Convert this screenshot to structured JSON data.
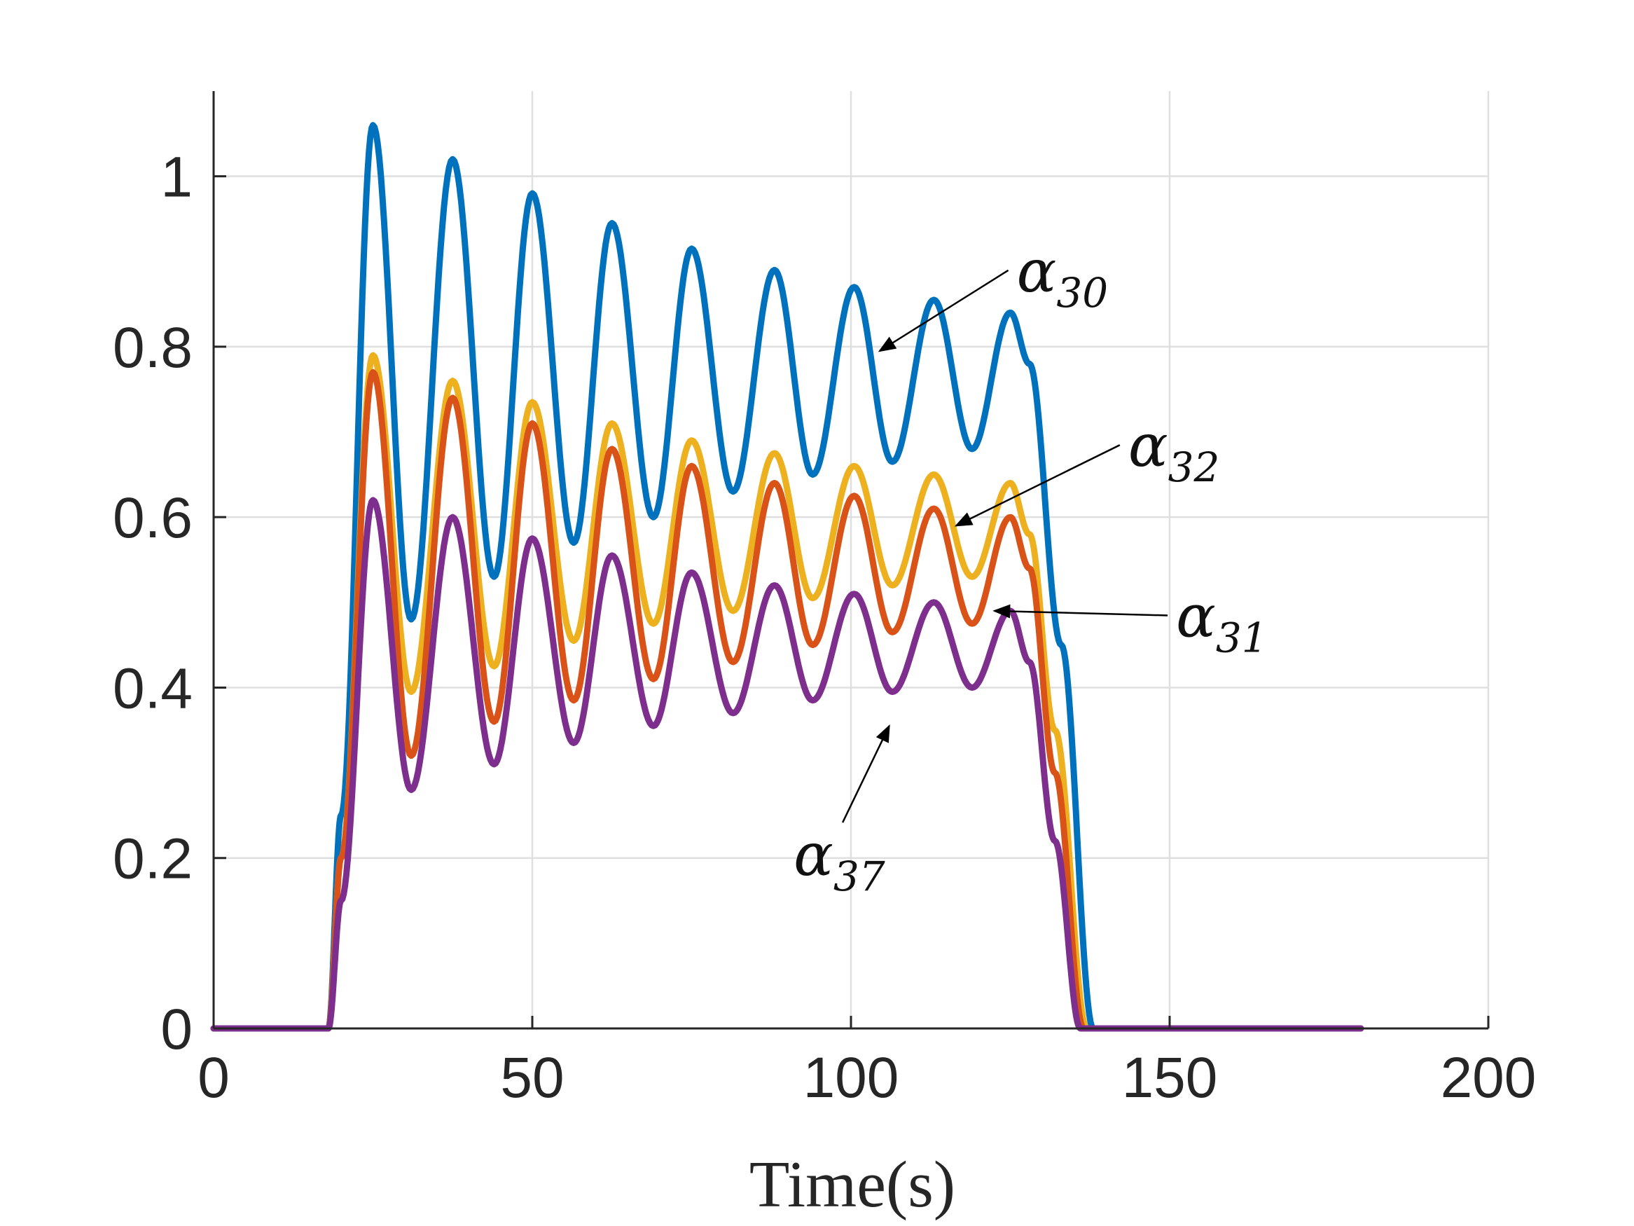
{
  "chart_data": {
    "type": "line",
    "xlabel": "Time(s)",
    "ylabel": "",
    "xlim": [
      0,
      200
    ],
    "ylim": [
      0,
      1.1
    ],
    "xticks": [
      0,
      50,
      100,
      150,
      200
    ],
    "xtick_labels": [
      "0",
      "50",
      "100",
      "150",
      "200"
    ],
    "yticks": [
      0,
      0.2,
      0.4,
      0.6,
      0.8,
      1
    ],
    "ytick_labels": [
      "0",
      "0.2",
      "0.4",
      "0.6",
      "0.8",
      "1"
    ],
    "grid": true,
    "series": [
      {
        "key": "a30",
        "color": "#0072BD",
        "x": [
          0,
          18,
          20,
          25,
          31,
          37.5,
          44,
          50,
          56.5,
          62.5,
          69,
          75,
          81.5,
          88,
          94,
          100.5,
          106.5,
          113,
          119,
          125,
          128,
          133,
          138,
          180
        ],
        "values": [
          0,
          0,
          0.25,
          1.06,
          0.48,
          1.02,
          0.53,
          0.98,
          0.57,
          0.945,
          0.6,
          0.915,
          0.63,
          0.89,
          0.65,
          0.87,
          0.665,
          0.855,
          0.68,
          0.84,
          0.78,
          0.45,
          0,
          0
        ]
      },
      {
        "key": "a32",
        "color": "#EDB120",
        "x": [
          0,
          18,
          20,
          25,
          31,
          37.5,
          44,
          50,
          56.5,
          62.5,
          69,
          75,
          81.5,
          88,
          94,
          100.5,
          106.5,
          113,
          119,
          125,
          128,
          132,
          137,
          180
        ],
        "values": [
          0,
          0,
          0.2,
          0.79,
          0.395,
          0.76,
          0.425,
          0.735,
          0.455,
          0.71,
          0.475,
          0.69,
          0.49,
          0.675,
          0.505,
          0.66,
          0.52,
          0.65,
          0.53,
          0.64,
          0.58,
          0.35,
          0,
          0
        ]
      },
      {
        "key": "a31",
        "color": "#D95319",
        "x": [
          0,
          18,
          20,
          25,
          31,
          37.5,
          44,
          50,
          56.5,
          62.5,
          69,
          75,
          81.5,
          88,
          94,
          100.5,
          106.5,
          113,
          119,
          125,
          128,
          132,
          136.5,
          180
        ],
        "values": [
          0,
          0,
          0.2,
          0.77,
          0.32,
          0.74,
          0.36,
          0.71,
          0.385,
          0.68,
          0.41,
          0.66,
          0.43,
          0.64,
          0.45,
          0.625,
          0.465,
          0.61,
          0.475,
          0.6,
          0.54,
          0.3,
          0,
          0
        ]
      },
      {
        "key": "a37",
        "color": "#7E2F8E",
        "x": [
          0,
          18,
          20,
          25,
          31,
          37.5,
          44,
          50,
          56.5,
          62.5,
          69,
          75,
          81.5,
          88,
          94,
          100.5,
          106.5,
          113,
          119,
          125,
          128,
          132,
          136,
          180
        ],
        "values": [
          0,
          0,
          0.15,
          0.62,
          0.28,
          0.6,
          0.31,
          0.575,
          0.335,
          0.555,
          0.355,
          0.535,
          0.37,
          0.52,
          0.385,
          0.51,
          0.395,
          0.5,
          0.4,
          0.49,
          0.43,
          0.22,
          0,
          0
        ]
      }
    ],
    "annotations": [
      {
        "main": "α",
        "sub": "30",
        "series": "a30",
        "label_at": [
          126,
          0.865
        ],
        "arrow_to": [
          104.5,
          0.795
        ]
      },
      {
        "main": "α",
        "sub": "32",
        "series": "a32",
        "label_at": [
          143.5,
          0.66
        ],
        "arrow_to": [
          116.5,
          0.59
        ]
      },
      {
        "main": "α",
        "sub": "31",
        "series": "a31",
        "label_at": [
          151,
          0.46
        ],
        "arrow_to": [
          122.5,
          0.49
        ]
      },
      {
        "main": "α",
        "sub": "37",
        "series": "a37",
        "label_at": [
          91,
          0.18
        ],
        "arrow_to": [
          106,
          0.355
        ]
      }
    ]
  }
}
